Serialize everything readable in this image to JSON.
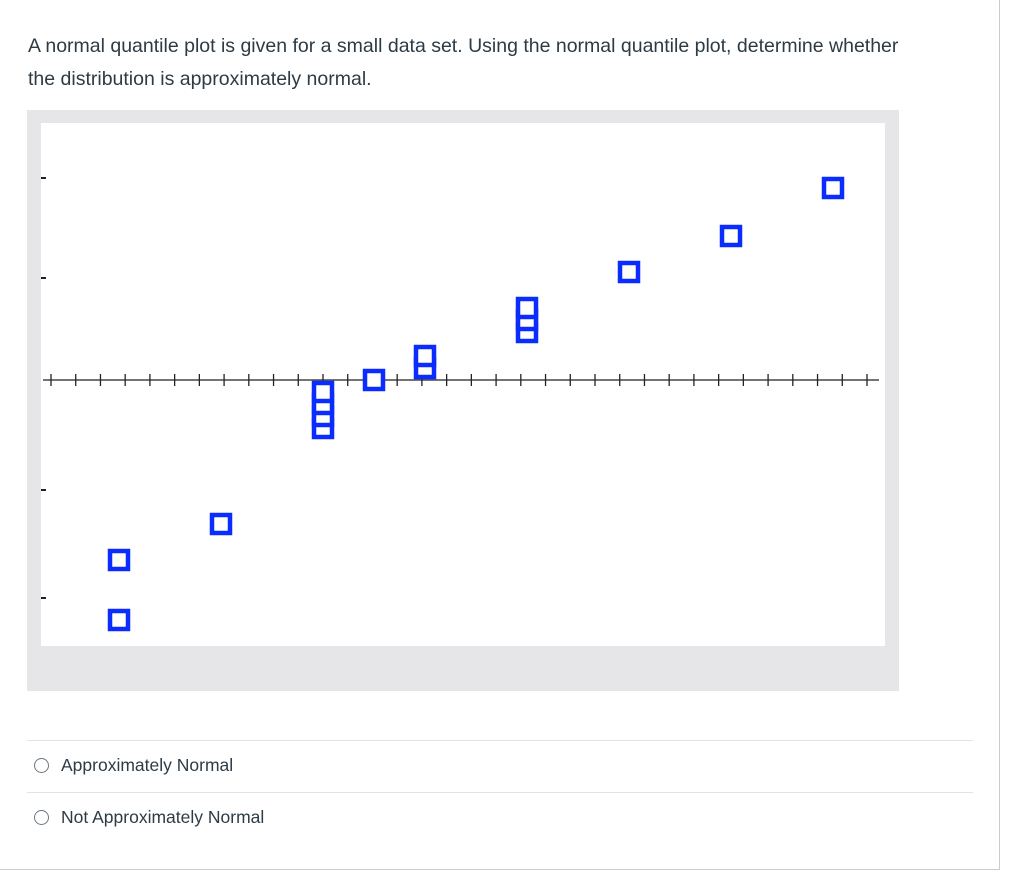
{
  "question": {
    "text": "A normal quantile plot is given for a small data set. Using the normal quantile plot, determine whether the distribution is approximately normal."
  },
  "chart_data": {
    "type": "scatter",
    "title": "",
    "xlabel": "",
    "ylabel": "",
    "x_tick_count": 34,
    "y_tick_count": 4,
    "grid": false,
    "legend": "none",
    "marker_color": "#0a2cff",
    "series": [
      {
        "points": [
          {
            "x": 1,
            "y": -2.0
          },
          {
            "x": 1,
            "y": -1.5
          },
          {
            "x": 2,
            "y": -1.2
          },
          {
            "x": 3,
            "y": -0.4
          },
          {
            "x": 3,
            "y": -0.3
          },
          {
            "x": 3,
            "y": -0.2
          },
          {
            "x": 3,
            "y": -0.1
          },
          {
            "x": 3.5,
            "y": 0.0
          },
          {
            "x": 4,
            "y": 0.1
          },
          {
            "x": 4,
            "y": 0.2
          },
          {
            "x": 5,
            "y": 0.4
          },
          {
            "x": 5,
            "y": 0.5
          },
          {
            "x": 5,
            "y": 0.6
          },
          {
            "x": 6,
            "y": 0.9
          },
          {
            "x": 7,
            "y": 1.2
          },
          {
            "x": 8,
            "y": 1.6
          }
        ]
      }
    ]
  },
  "answers": [
    {
      "label": "Approximately Normal",
      "selected": false
    },
    {
      "label": "Not Approximately Normal",
      "selected": false
    }
  ]
}
